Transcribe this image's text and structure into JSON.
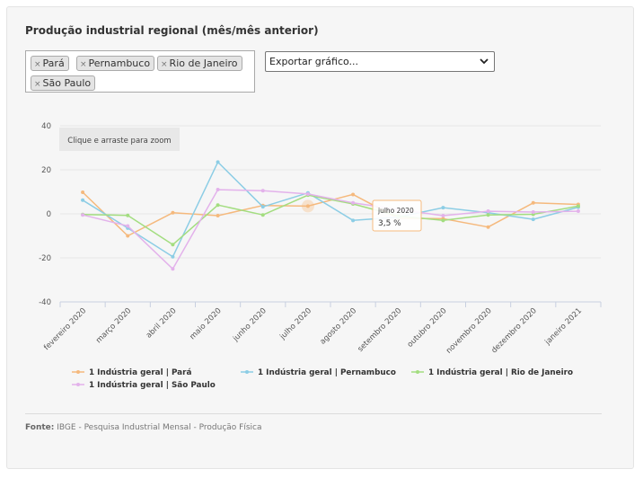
{
  "page": {
    "title": "Produção industrial regional (mês/mês anterior)",
    "tags": [
      "Pará",
      "Pernambuco",
      "Rio de Janeiro",
      "São Paulo"
    ],
    "tag_remove_symbol": "×",
    "export_label": "Exportar gráfico...",
    "zoom_button": "Clique e arraste para zoom",
    "source_label": "Fonte:",
    "source_text": "IBGE - Pesquisa Industrial Mensal - Produção Física",
    "tooltip": {
      "label": "julho 2020",
      "value": "3,5 %"
    }
  },
  "chart_data": {
    "type": "line",
    "categories": [
      "fevereiro 2020",
      "março 2020",
      "abril 2020",
      "maio 2020",
      "junho 2020",
      "julho 2020",
      "agosto 2020",
      "setembro 2020",
      "outubro 2020",
      "novembro 2020",
      "dezembro 2020",
      "janeiro 2021"
    ],
    "ylim": [
      -40,
      40
    ],
    "yticks": [
      40,
      20,
      0,
      -20,
      -40
    ],
    "grid": "horizontal",
    "legend_position": "bottom",
    "series": [
      {
        "name": "1 Indústria geral | Pará",
        "color": "#f5b97d",
        "values": [
          9.8,
          -10.0,
          0.5,
          -0.8,
          3.8,
          3.5,
          8.8,
          -2.0,
          -2.2,
          -6.0,
          5.0,
          4.3
        ]
      },
      {
        "name": "1 Indústria geral | Pernambuco",
        "color": "#8ccde5",
        "values": [
          6.2,
          -6.5,
          -19.5,
          23.5,
          3.2,
          9.5,
          -3.0,
          -1.5,
          2.8,
          0.5,
          -2.5,
          3.0
        ]
      },
      {
        "name": "1 Indústria geral | Rio de Janeiro",
        "color": "#a3dd80",
        "values": [
          -0.3,
          -0.7,
          -14.0,
          4.0,
          -0.5,
          8.5,
          4.5,
          -1.0,
          -3.0,
          -0.5,
          -0.2,
          3.5
        ]
      },
      {
        "name": "1 Indústria geral | São Paulo",
        "color": "#e3b2eb",
        "values": [
          -0.5,
          -5.5,
          -25.0,
          11.0,
          10.5,
          9.0,
          5.0,
          2.0,
          -0.8,
          1.2,
          0.8,
          1.2
        ]
      }
    ]
  }
}
